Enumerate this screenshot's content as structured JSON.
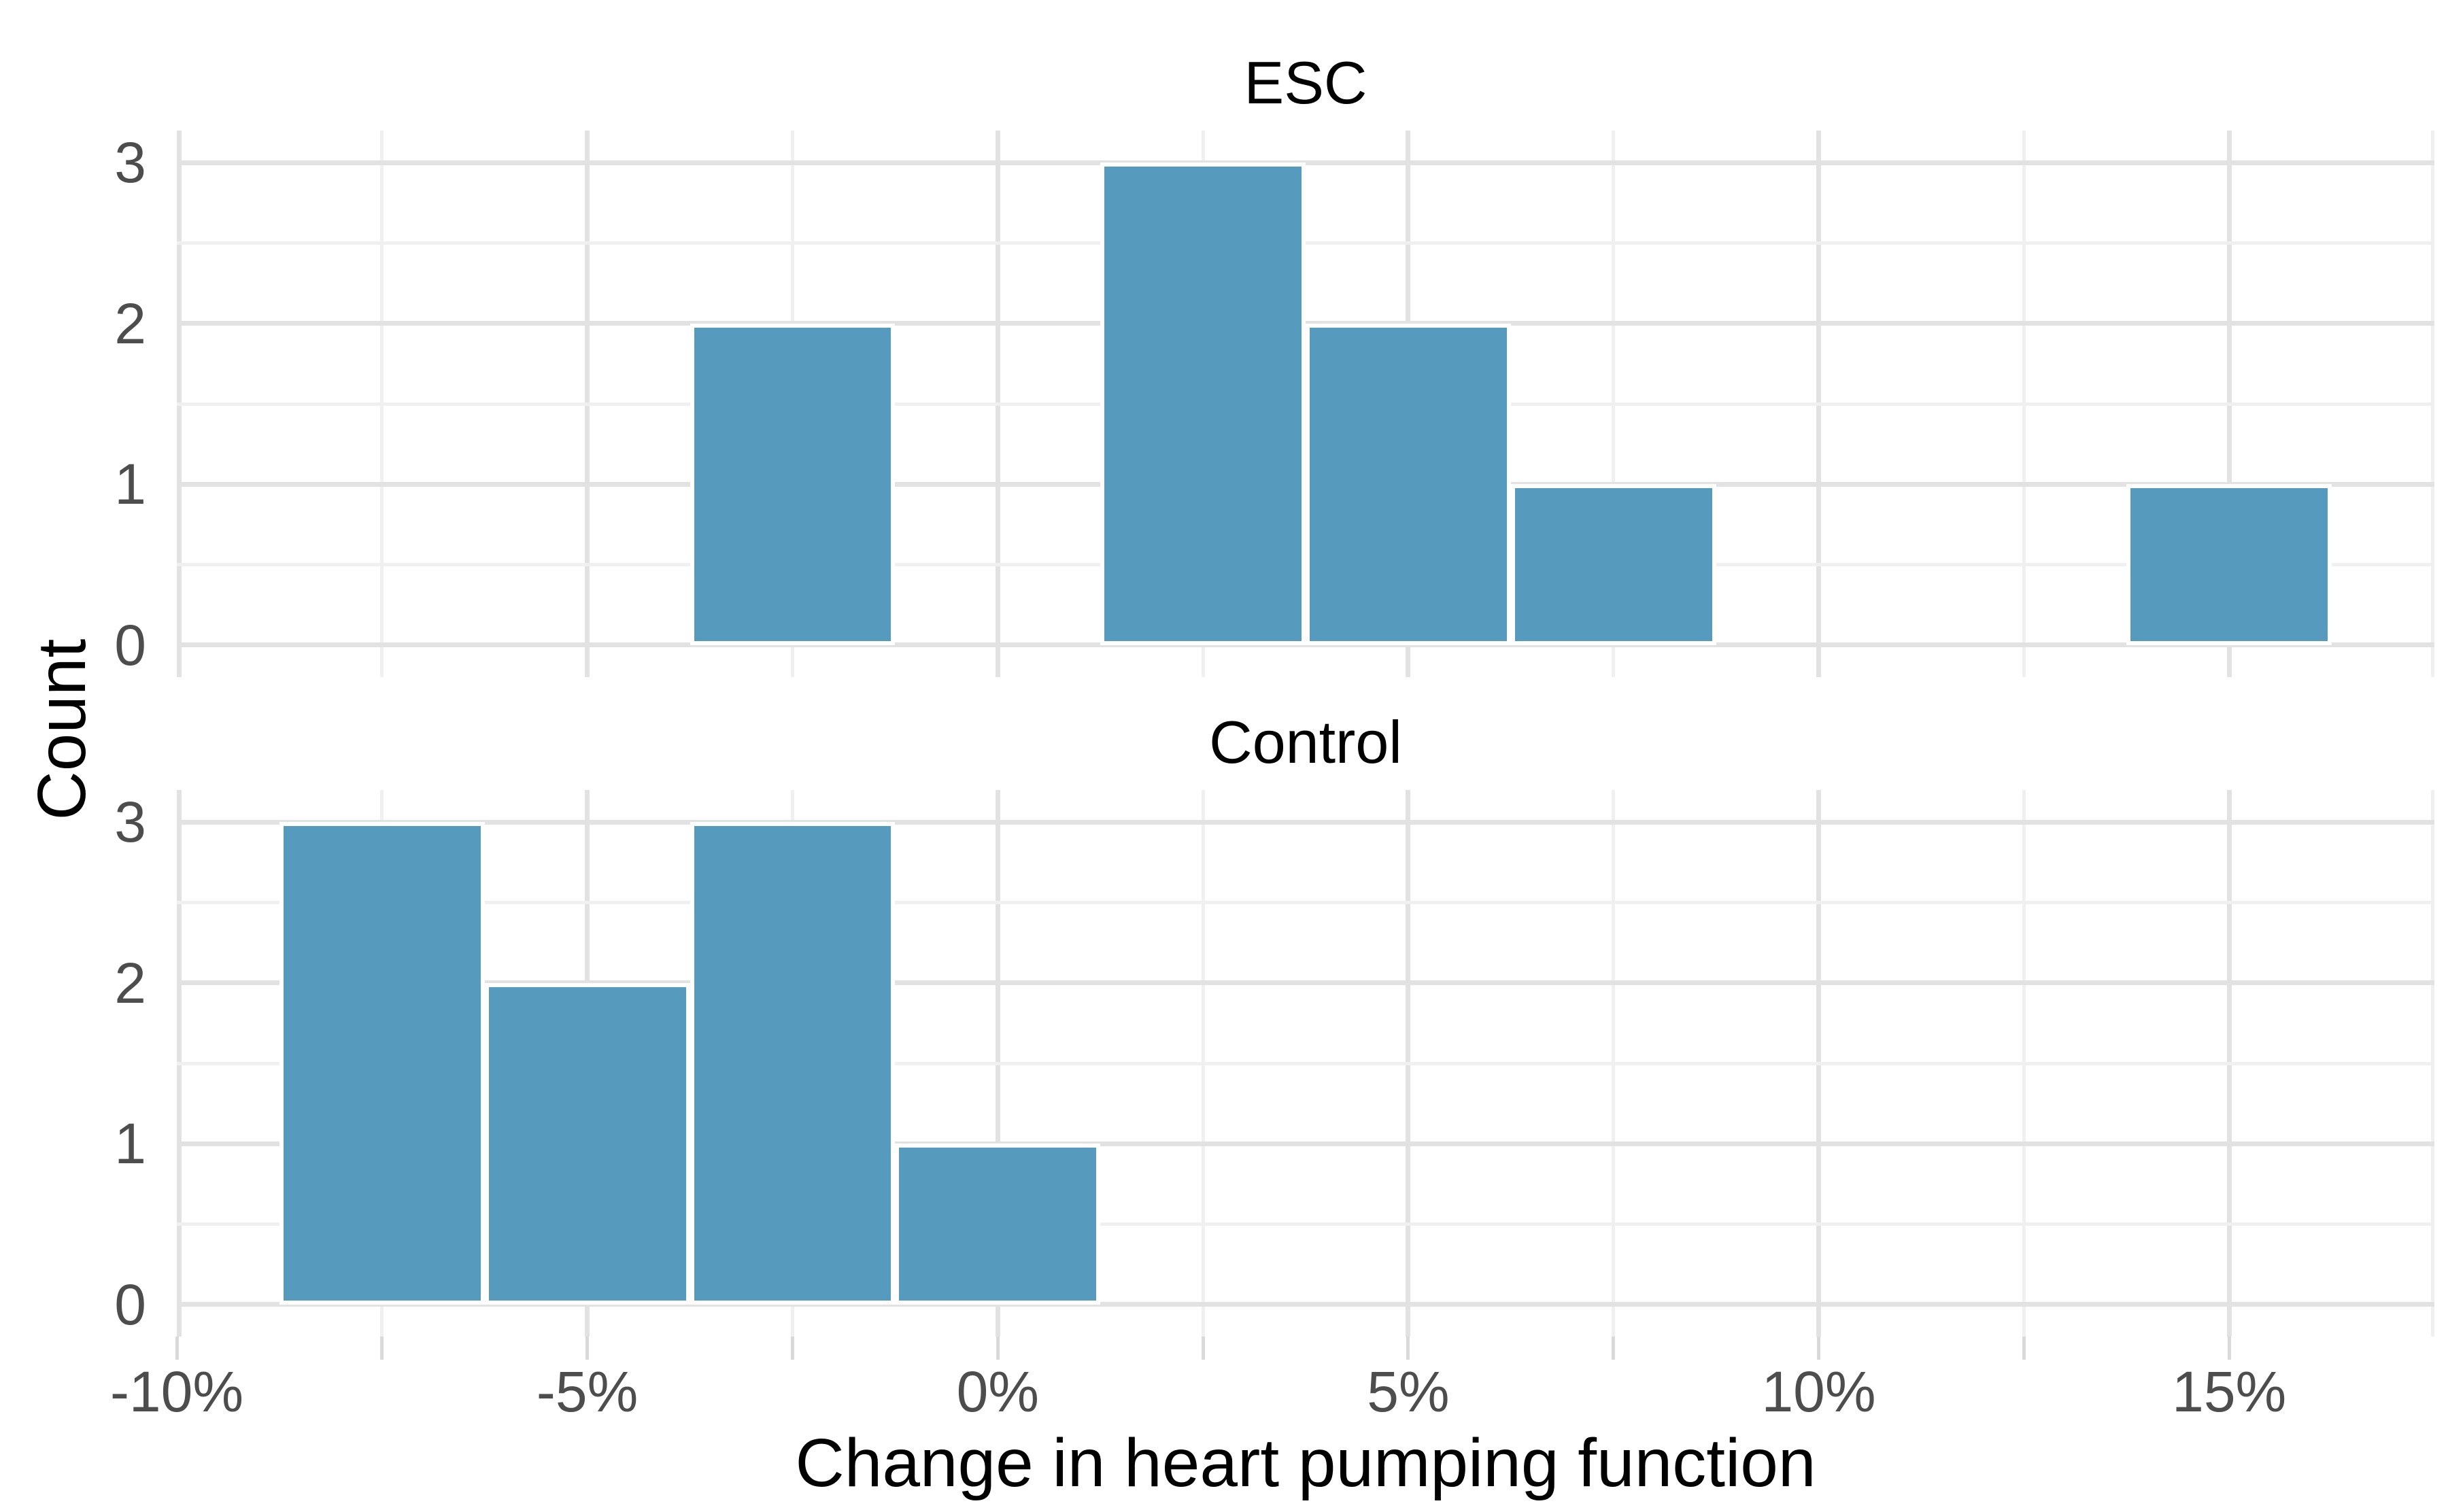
{
  "chart_data": {
    "type": "bar",
    "subtype": "faceted-histogram",
    "title": "",
    "xlabel": "Change in heart pumping function",
    "ylabel": "Count",
    "x_range": [
      -10,
      17.5
    ],
    "y_range": [
      -0.2,
      3.2
    ],
    "x_major_breaks": [
      -10,
      -5,
      0,
      5,
      10,
      15
    ],
    "x_minor_breaks": [
      -7.5,
      -2.5,
      2.5,
      7.5,
      12.5,
      17.5
    ],
    "x_tick_labels": [
      "-10%",
      "-5%",
      "0%",
      "5%",
      "10%",
      "15%"
    ],
    "y_ticks": [
      0,
      1,
      2,
      3
    ],
    "y_tick_labels": [
      "0",
      "1",
      "2",
      "3"
    ],
    "y_minor_breaks": [
      0.5,
      1.5,
      2.5
    ],
    "binwidth_percent": 2.5,
    "grid": "on",
    "legend": "none",
    "bar_color": "#569BBD",
    "bar_stroke_color": "#FFFFFF",
    "facets": [
      {
        "label": "ESC",
        "bins": [
          {
            "x0": -3.75,
            "x1": -1.25,
            "count": 2
          },
          {
            "x0": 1.25,
            "x1": 3.75,
            "count": 3
          },
          {
            "x0": 3.75,
            "x1": 6.25,
            "count": 2
          },
          {
            "x0": 6.25,
            "x1": 8.75,
            "count": 1
          },
          {
            "x0": 13.75,
            "x1": 16.25,
            "count": 1
          }
        ]
      },
      {
        "label": "Control",
        "bins": [
          {
            "x0": -8.75,
            "x1": -6.25,
            "count": 3
          },
          {
            "x0": -6.25,
            "x1": -3.75,
            "count": 2
          },
          {
            "x0": -3.75,
            "x1": -1.25,
            "count": 3
          },
          {
            "x0": -1.25,
            "x1": 1.25,
            "count": 1
          }
        ]
      }
    ]
  }
}
